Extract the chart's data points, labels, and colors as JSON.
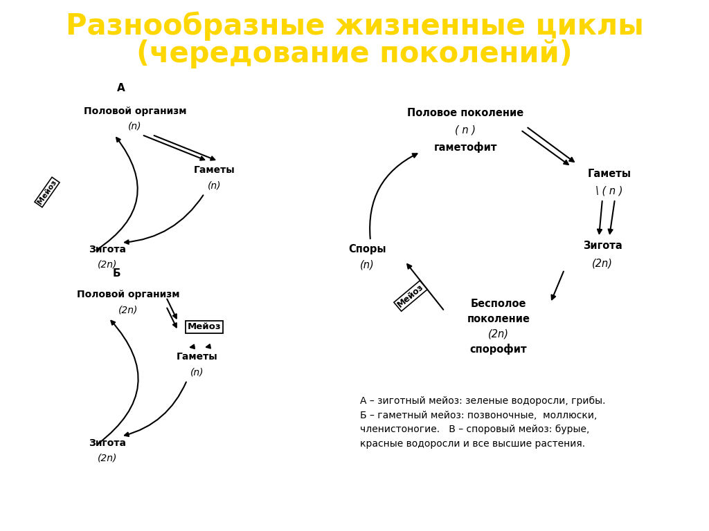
{
  "title_line1": "Разнообразные жизненные циклы",
  "title_line2": "(чередование поколений)",
  "title_color": "#FFD700",
  "bg_color": "#FFFFFF",
  "text_color": "#000000",
  "note_text": "А – зиготный мейоз: зеленые водоросли, грибы.\nБ – гаметный мейоз: позвоночные,  моллюски,\nчленистоногие.   В – споровый мейоз: бурые,\nкрасные водоросли и все высшие растения."
}
